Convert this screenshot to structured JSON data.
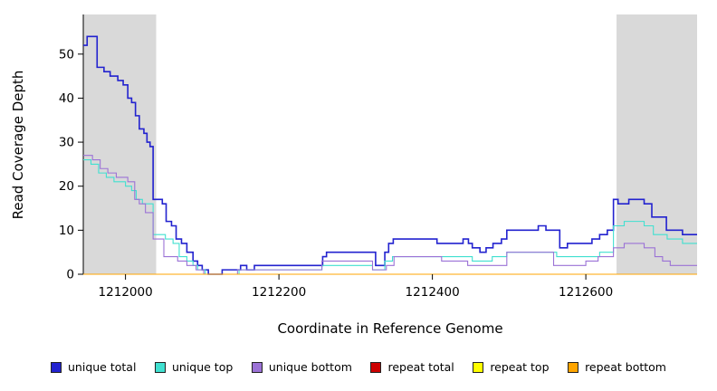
{
  "chart_data": {
    "type": "line",
    "subtype": "step",
    "title": "",
    "xlabel": "Coordinate in Reference Genome",
    "ylabel": "Read Coverage Depth",
    "xlim": [
      1211945,
      1212745
    ],
    "ylim": [
      0,
      59
    ],
    "x_ticks": [
      1212000,
      1212200,
      1212400,
      1212600
    ],
    "y_ticks": [
      0,
      10,
      20,
      30,
      40,
      50
    ],
    "grid": false,
    "legend_position": "bottom",
    "shaded_regions": [
      {
        "x0": 1211945,
        "x1": 1212040,
        "color": "#d9d9d9"
      },
      {
        "x0": 1212640,
        "x1": 1212745,
        "color": "#d9d9d9"
      }
    ],
    "series": [
      {
        "name": "unique total",
        "color": "#2222cf",
        "points": [
          [
            1211945,
            52
          ],
          [
            1211950,
            54
          ],
          [
            1211963,
            47
          ],
          [
            1211972,
            46
          ],
          [
            1211980,
            45
          ],
          [
            1211990,
            44
          ],
          [
            1211997,
            43
          ],
          [
            1212003,
            40
          ],
          [
            1212008,
            39
          ],
          [
            1212013,
            36
          ],
          [
            1212018,
            33
          ],
          [
            1212024,
            32
          ],
          [
            1212028,
            30
          ],
          [
            1212032,
            29
          ],
          [
            1212036,
            17
          ],
          [
            1212048,
            16
          ],
          [
            1212053,
            12
          ],
          [
            1212060,
            11
          ],
          [
            1212066,
            8
          ],
          [
            1212073,
            7
          ],
          [
            1212080,
            5
          ],
          [
            1212088,
            3
          ],
          [
            1212094,
            2
          ],
          [
            1212100,
            1
          ],
          [
            1212108,
            0
          ],
          [
            1212126,
            1
          ],
          [
            1212144,
            1
          ],
          [
            1212150,
            2
          ],
          [
            1212158,
            1
          ],
          [
            1212168,
            2
          ],
          [
            1212252,
            2
          ],
          [
            1212257,
            4
          ],
          [
            1212262,
            5
          ],
          [
            1212318,
            5
          ],
          [
            1212326,
            2
          ],
          [
            1212338,
            5
          ],
          [
            1212343,
            7
          ],
          [
            1212349,
            8
          ],
          [
            1212398,
            8
          ],
          [
            1212406,
            7
          ],
          [
            1212434,
            7
          ],
          [
            1212440,
            8
          ],
          [
            1212447,
            7
          ],
          [
            1212452,
            6
          ],
          [
            1212462,
            5
          ],
          [
            1212470,
            6
          ],
          [
            1212479,
            7
          ],
          [
            1212490,
            8
          ],
          [
            1212497,
            10
          ],
          [
            1212532,
            10
          ],
          [
            1212538,
            11
          ],
          [
            1212548,
            10
          ],
          [
            1212562,
            10
          ],
          [
            1212566,
            6
          ],
          [
            1212576,
            7
          ],
          [
            1212600,
            7
          ],
          [
            1212608,
            8
          ],
          [
            1212618,
            9
          ],
          [
            1212628,
            10
          ],
          [
            1212636,
            17
          ],
          [
            1212642,
            16
          ],
          [
            1212656,
            17
          ],
          [
            1212676,
            16
          ],
          [
            1212686,
            13
          ],
          [
            1212705,
            10
          ],
          [
            1212726,
            9
          ],
          [
            1212745,
            9
          ]
        ]
      },
      {
        "name": "unique top",
        "color": "#40e0d0",
        "points": [
          [
            1211945,
            26
          ],
          [
            1211955,
            25
          ],
          [
            1211965,
            23
          ],
          [
            1211975,
            22
          ],
          [
            1211985,
            21
          ],
          [
            1212000,
            20
          ],
          [
            1212008,
            19
          ],
          [
            1212014,
            17
          ],
          [
            1212022,
            16
          ],
          [
            1212036,
            9
          ],
          [
            1212052,
            8
          ],
          [
            1212062,
            7
          ],
          [
            1212070,
            4
          ],
          [
            1212080,
            3
          ],
          [
            1212088,
            2
          ],
          [
            1212094,
            1
          ],
          [
            1212104,
            0
          ],
          [
            1212148,
            1
          ],
          [
            1212256,
            2
          ],
          [
            1212322,
            1
          ],
          [
            1212338,
            3
          ],
          [
            1212348,
            4
          ],
          [
            1212452,
            3
          ],
          [
            1212478,
            4
          ],
          [
            1212497,
            5
          ],
          [
            1212562,
            4
          ],
          [
            1212618,
            5
          ],
          [
            1212636,
            11
          ],
          [
            1212650,
            12
          ],
          [
            1212676,
            11
          ],
          [
            1212688,
            9
          ],
          [
            1212706,
            8
          ],
          [
            1212726,
            7
          ],
          [
            1212745,
            7
          ]
        ]
      },
      {
        "name": "unique bottom",
        "color": "#9b72d6",
        "points": [
          [
            1211945,
            27
          ],
          [
            1211957,
            26
          ],
          [
            1211967,
            24
          ],
          [
            1211977,
            23
          ],
          [
            1211988,
            22
          ],
          [
            1212003,
            21
          ],
          [
            1212012,
            17
          ],
          [
            1212018,
            16
          ],
          [
            1212026,
            14
          ],
          [
            1212036,
            8
          ],
          [
            1212050,
            4
          ],
          [
            1212068,
            3
          ],
          [
            1212080,
            2
          ],
          [
            1212092,
            1
          ],
          [
            1212102,
            0
          ],
          [
            1212146,
            1
          ],
          [
            1212256,
            3
          ],
          [
            1212322,
            1
          ],
          [
            1212340,
            2
          ],
          [
            1212350,
            4
          ],
          [
            1212412,
            3
          ],
          [
            1212446,
            2
          ],
          [
            1212497,
            5
          ],
          [
            1212558,
            2
          ],
          [
            1212600,
            3
          ],
          [
            1212616,
            4
          ],
          [
            1212636,
            6
          ],
          [
            1212650,
            7
          ],
          [
            1212676,
            6
          ],
          [
            1212690,
            4
          ],
          [
            1212700,
            3
          ],
          [
            1212710,
            2
          ],
          [
            1212745,
            2
          ]
        ]
      },
      {
        "name": "repeat total",
        "color": "#cc0000",
        "points": [
          [
            1211945,
            0
          ],
          [
            1212745,
            0
          ]
        ]
      },
      {
        "name": "repeat top",
        "color": "#ffff00",
        "points": [
          [
            1211945,
            0
          ],
          [
            1212745,
            0
          ]
        ]
      },
      {
        "name": "repeat bottom",
        "color": "#ffa500",
        "points": [
          [
            1211945,
            0
          ],
          [
            1212745,
            0
          ]
        ]
      }
    ]
  }
}
